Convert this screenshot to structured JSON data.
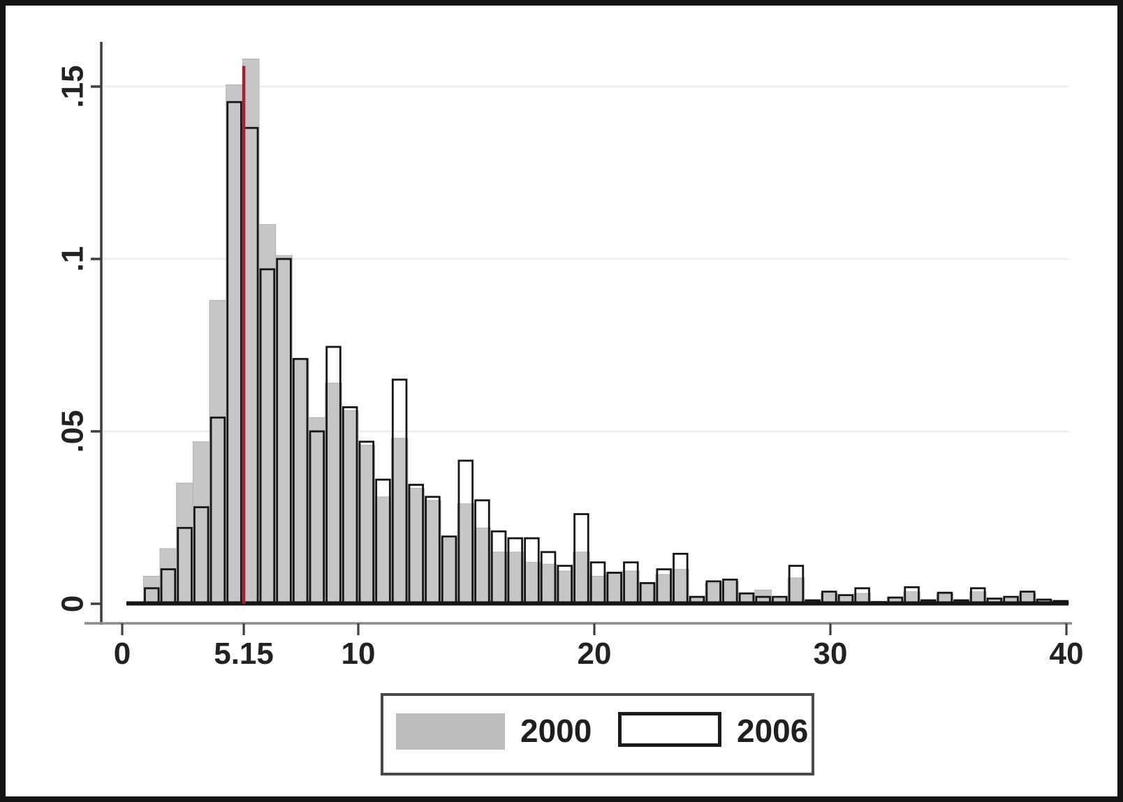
{
  "figure": {
    "background": "#ffffff",
    "frame_color": "#141414"
  },
  "colors": {
    "bar_2000_fill": "#c6c6c6",
    "bar_2000_edge": "#b2b2b2",
    "bar_2006_outline": "#161616",
    "red_line": "#a22432",
    "gridline": "#ededed",
    "y_axis_line": "#3f3f3f",
    "x_axis_line": "#8c8c8c",
    "tick_color": "#3f3f3f",
    "text_color": "#222222",
    "baseline_color": "#141414"
  },
  "y_axis": {
    "tick_labels": [
      "0",
      ".05",
      ".1",
      ".15"
    ],
    "tick_values": [
      0,
      0.05,
      0.1,
      0.15
    ]
  },
  "x_axis": {
    "tick_labels": [
      "0",
      "5.15",
      "10",
      "20",
      "30",
      "40"
    ],
    "tick_values": [
      0,
      5.15,
      10,
      20,
      30,
      40
    ],
    "min": 0,
    "max": 40
  },
  "red_reference_line": {
    "x": 5.15,
    "top_value": 0.156
  },
  "legend": {
    "items": [
      {
        "label": "2000",
        "swatch": "gray-fill"
      },
      {
        "label": "2006",
        "swatch": "white-outline"
      }
    ]
  },
  "chart_data": {
    "type": "bar",
    "subtype": "overlaid-histogram",
    "title": "",
    "xlabel": "",
    "ylabel": "",
    "ylim": [
      0,
      0.163
    ],
    "xlim": [
      0,
      40
    ],
    "grid": "horizontal-light",
    "legend_position": "bottom-center",
    "bin_start": 0.9,
    "bin_width": 0.7,
    "n_bins": 56,
    "red_line_x": 5.15,
    "series": [
      {
        "name": "2000",
        "style": "filled-gray",
        "values": [
          0.008,
          0.016,
          0.035,
          0.047,
          0.088,
          0.1505,
          0.158,
          0.11,
          0.101,
          0.071,
          0.054,
          0.064,
          0.056,
          0.046,
          0.031,
          0.048,
          0.0335,
          0.03,
          0.019,
          0.029,
          0.022,
          0.015,
          0.015,
          0.012,
          0.0115,
          0.0095,
          0.015,
          0.008,
          0.009,
          0.0095,
          0.006,
          0.0085,
          0.01,
          0.002,
          0.006,
          0.0065,
          0.003,
          0.004,
          0.0015,
          0.0075,
          0.001,
          0.003,
          0.002,
          0.003,
          0.0005,
          0.0018,
          0.0035,
          0.001,
          0.0028,
          0.001,
          0.0035,
          0.001,
          0.0015,
          0.003,
          0.001,
          0.0008
        ]
      },
      {
        "name": "2006",
        "style": "hollow-black-outline",
        "values": [
          0.0045,
          0.01,
          0.022,
          0.028,
          0.054,
          0.1455,
          0.138,
          0.097,
          0.1,
          0.071,
          0.05,
          0.0745,
          0.057,
          0.047,
          0.036,
          0.065,
          0.0345,
          0.031,
          0.0195,
          0.0415,
          0.03,
          0.021,
          0.019,
          0.019,
          0.015,
          0.011,
          0.026,
          0.012,
          0.009,
          0.012,
          0.006,
          0.01,
          0.0145,
          0.002,
          0.0065,
          0.007,
          0.003,
          0.002,
          0.002,
          0.011,
          0.001,
          0.0035,
          0.0025,
          0.0045,
          0.0005,
          0.0018,
          0.0048,
          0.001,
          0.0032,
          0.001,
          0.0045,
          0.0015,
          0.002,
          0.0035,
          0.0012,
          0.0008
        ]
      }
    ]
  }
}
